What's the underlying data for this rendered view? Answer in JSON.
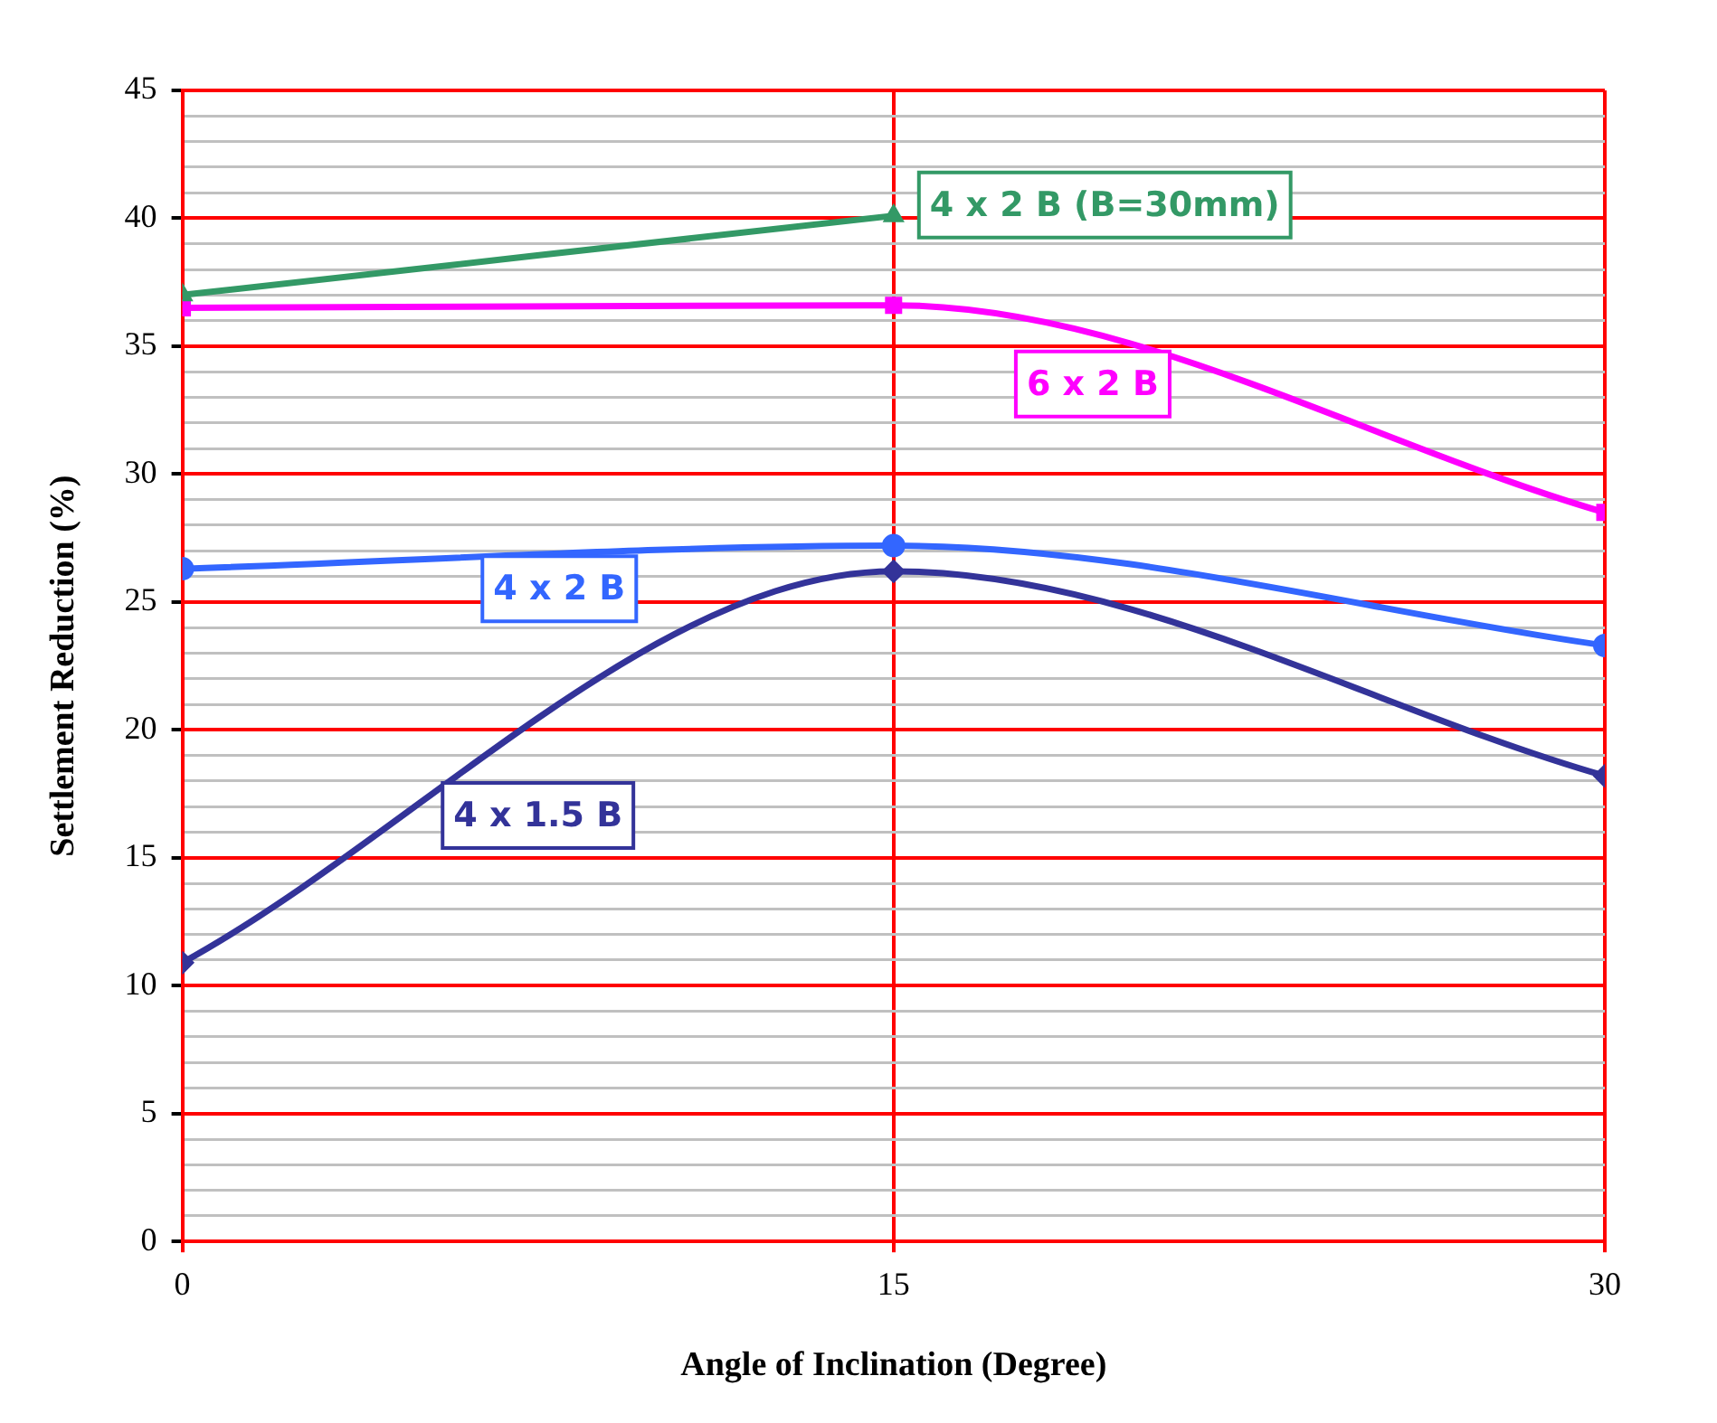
{
  "chart_data": {
    "type": "line",
    "xlabel": "Angle of Inclination (Degree)",
    "ylabel": "Settlement Reduction (%)",
    "x": [
      0,
      15,
      30
    ],
    "xlim": [
      0,
      30
    ],
    "xticks": [
      0,
      15,
      30
    ],
    "ylim": [
      0,
      45
    ],
    "yticks": [
      0,
      {
        "value": 1,
        "label": null
      },
      {
        "value": 2,
        "label": null
      },
      {
        "value": 3,
        "label": null
      },
      {
        "value": 4,
        "label": null
      },
      5,
      {
        "value": 6,
        "label": null
      },
      {
        "value": 7,
        "label": null
      },
      {
        "value": 8,
        "label": null
      },
      {
        "value": 9,
        "label": null
      },
      10,
      {
        "value": 11,
        "label": null
      },
      {
        "value": 12,
        "label": null
      },
      {
        "value": 13,
        "label": null
      },
      {
        "value": 14,
        "label": null
      },
      15,
      {
        "value": 16,
        "label": null
      },
      {
        "value": 17,
        "label": null
      },
      {
        "value": 18,
        "label": null
      },
      {
        "value": 19,
        "label": null
      },
      20,
      {
        "value": 21,
        "label": null
      },
      {
        "value": 22,
        "label": null
      },
      {
        "value": 23,
        "label": null
      },
      {
        "value": 24,
        "label": null
      },
      25,
      {
        "value": 26,
        "label": null
      },
      {
        "value": 27,
        "label": null
      },
      {
        "value": 28,
        "label": null
      },
      {
        "value": 29,
        "label": null
      },
      30,
      {
        "value": 31,
        "label": null
      },
      {
        "value": 32,
        "label": null
      },
      {
        "value": 33,
        "label": null
      },
      {
        "value": 34,
        "label": null
      },
      35,
      {
        "value": 36,
        "label": null
      },
      {
        "value": 37,
        "label": null
      },
      {
        "value": 38,
        "label": null
      },
      {
        "value": 39,
        "label": null
      },
      40,
      {
        "value": 41,
        "label": null
      },
      {
        "value": 42,
        "label": null
      },
      {
        "value": 43,
        "label": null
      },
      {
        "value": 44,
        "label": null
      },
      45
    ],
    "grid": true,
    "legend": false,
    "series": [
      {
        "name": "4 x 2 B (B=30mm)",
        "color": "#339966",
        "marker": "triangle",
        "x": [
          0,
          15
        ],
        "values": [
          37.0,
          40.1
        ]
      },
      {
        "name": "6 x 2 B",
        "color": "#ff00ff",
        "marker": "square",
        "values": [
          36.5,
          36.6,
          28.5
        ]
      },
      {
        "name": "4 x 2 B",
        "color": "#3366ff",
        "marker": "circle",
        "values": [
          26.3,
          27.2,
          23.3
        ]
      },
      {
        "name": "4 x 1.5 B",
        "color": "#333399",
        "marker": "diamond",
        "values": [
          10.9,
          26.2,
          18.2
        ]
      }
    ]
  }
}
